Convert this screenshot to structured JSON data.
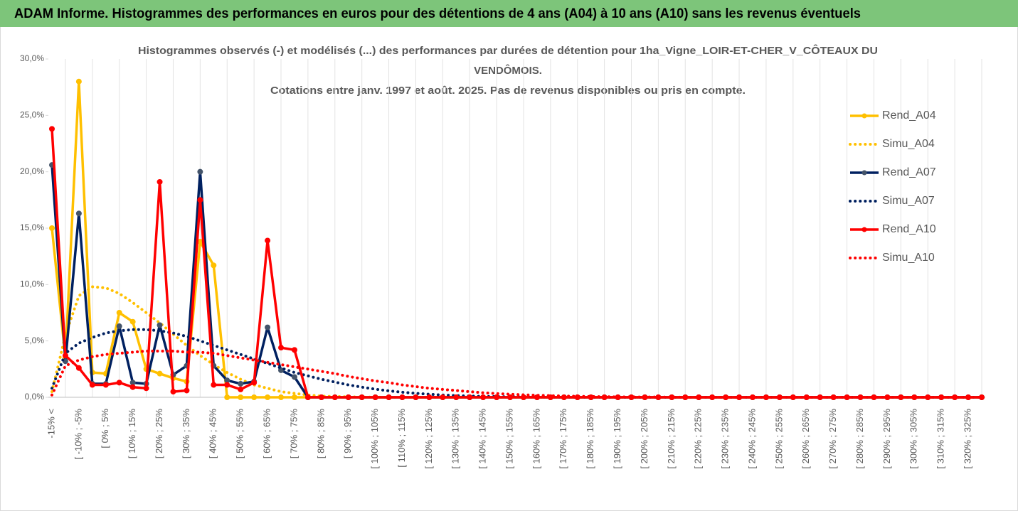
{
  "header": {
    "title": "ADAM Informe. Histogrammes des performances en euros pour des détentions de 4 ans (A04) à 10 ans (A10) sans les revenus éventuels"
  },
  "chart_data": {
    "type": "line",
    "title": [
      "Histogrammes observés (-) et modélisés (...) des performances par durées de détention pour 1ha_Vigne_LOIR-ET-CHER_V_CÔTEAUX DU",
      "VENDÔMOIS.",
      "Cotations entre janv. 1997 et août. 2025. Pas de revenus disponibles ou pris en compte."
    ],
    "categories": [
      "-15% <",
      null,
      "[ -10% ; -5%",
      null,
      "[ 0% ; 5%",
      null,
      "[ 10% ; 15%",
      null,
      "[ 20% ; 25%",
      null,
      "[ 30% ; 35%",
      null,
      "[ 40% ; 45%",
      null,
      "[ 50% ; 55%",
      null,
      "[ 60% ; 65%",
      null,
      "[ 70% ; 75%",
      null,
      "[ 80% ; 85%",
      null,
      "[ 90% ; 95%",
      null,
      "[ 100% ; 105%",
      null,
      "[ 110% ; 115%",
      null,
      "[ 120% ; 125%",
      null,
      "[ 130% ; 135%",
      null,
      "[ 140% ; 145%",
      null,
      "[ 150% ; 155%",
      null,
      "[ 160% ; 165%",
      null,
      "[ 170% ; 175%",
      null,
      "[ 180% ; 185%",
      null,
      "[ 190% ; 195%",
      null,
      "[ 200% ; 205%",
      null,
      "[ 210% ; 215%",
      null,
      "[ 220% ; 225%",
      null,
      "[ 230% ; 235%",
      null,
      "[ 240% ; 245%",
      null,
      "[ 250% ; 255%",
      null,
      "[ 260% ; 265%",
      null,
      "[ 270% ; 275%",
      null,
      "[ 280% ; 285%",
      null,
      "[ 290% ; 295%",
      null,
      "[ 300% ; 305%",
      null,
      "[ 310% ; 315%",
      null,
      "[ 320% ; 325%",
      null
    ],
    "series": [
      {
        "name": "Rend_A04",
        "color": "#FFC000",
        "dotted": false,
        "marker_color": "#FFC000",
        "values": [
          15.0,
          3.5,
          28.0,
          2.2,
          2.1,
          7.5,
          6.7,
          2.5,
          2.1,
          1.7,
          1.4,
          13.8,
          11.7,
          0,
          0,
          0,
          0,
          0,
          0,
          0,
          0,
          0,
          0,
          0,
          0,
          0,
          0,
          0,
          0,
          0,
          0,
          0,
          0,
          0,
          0,
          0,
          0,
          0,
          0,
          0,
          0,
          0,
          0,
          0,
          0,
          0,
          0,
          0,
          0,
          0,
          0,
          0,
          0,
          0,
          0,
          0,
          0,
          0,
          0,
          0,
          0,
          0,
          0,
          0,
          0,
          0,
          0,
          0,
          0,
          0
        ]
      },
      {
        "name": "Simu_A04",
        "color": "#FFC000",
        "dotted": true,
        "values": [
          0.5,
          5.5,
          9.0,
          9.8,
          9.7,
          9.2,
          8.4,
          7.5,
          6.6,
          5.6,
          4.6,
          3.7,
          2.9,
          2.2,
          1.6,
          1.1,
          0.8,
          0.5,
          0.35,
          0.2,
          0.1,
          0.07,
          0.04,
          0.02,
          0.01,
          0,
          0,
          0,
          0,
          0,
          0,
          0,
          0,
          0,
          0,
          0,
          0,
          0,
          0,
          0,
          0,
          0,
          0,
          0,
          0,
          0,
          0,
          0,
          0,
          0,
          0,
          0,
          0,
          0,
          0,
          0,
          0,
          0,
          0,
          0,
          0,
          0,
          0,
          0,
          0,
          0,
          0,
          0,
          0,
          0
        ]
      },
      {
        "name": "Rend_A07",
        "color": "#002060",
        "dotted": false,
        "marker_color": "#44546A",
        "values": [
          20.6,
          3.2,
          16.3,
          1.2,
          1.2,
          6.3,
          1.3,
          1.2,
          6.4,
          2.0,
          2.8,
          20.0,
          2.8,
          1.5,
          1.2,
          1.4,
          6.2,
          2.4,
          1.8,
          0,
          0,
          0,
          0,
          0,
          0,
          0,
          0,
          0,
          0,
          0,
          0,
          0,
          0,
          0,
          0,
          0,
          0,
          0,
          0,
          0,
          0,
          0,
          0,
          0,
          0,
          0,
          0,
          0,
          0,
          0,
          0,
          0,
          0,
          0,
          0,
          0,
          0,
          0,
          0,
          0,
          0,
          0,
          0,
          0,
          0,
          0,
          0,
          0,
          0,
          0
        ]
      },
      {
        "name": "Simu_A07",
        "color": "#002060",
        "dotted": true,
        "values": [
          0.8,
          3.9,
          4.8,
          5.3,
          5.7,
          5.9,
          6.0,
          6.0,
          5.9,
          5.7,
          5.4,
          5.0,
          4.6,
          4.2,
          3.8,
          3.4,
          3.0,
          2.6,
          2.2,
          1.9,
          1.6,
          1.35,
          1.1,
          0.9,
          0.72,
          0.57,
          0.45,
          0.35,
          0.27,
          0.2,
          0.15,
          0.11,
          0.08,
          0.06,
          0.04,
          0.03,
          0.02,
          0.01,
          0.01,
          0,
          0,
          0,
          0,
          0,
          0,
          0,
          0,
          0,
          0,
          0,
          0,
          0,
          0,
          0,
          0,
          0,
          0,
          0,
          0,
          0,
          0,
          0,
          0,
          0,
          0,
          0,
          0,
          0,
          0,
          0
        ]
      },
      {
        "name": "Rend_A10",
        "color": "#FF0000",
        "dotted": false,
        "marker_color": "#FF0000",
        "values": [
          23.8,
          3.7,
          2.6,
          1.1,
          1.1,
          1.3,
          0.9,
          0.8,
          19.1,
          0.5,
          0.6,
          17.5,
          1.1,
          1.1,
          0.7,
          1.3,
          13.9,
          4.4,
          4.2,
          0,
          0,
          0,
          0,
          0,
          0,
          0,
          0,
          0,
          0,
          0,
          0,
          0,
          0,
          0,
          0,
          0,
          0,
          0,
          0,
          0,
          0,
          0,
          0,
          0,
          0,
          0,
          0,
          0,
          0,
          0,
          0,
          0,
          0,
          0,
          0,
          0,
          0,
          0,
          0,
          0,
          0,
          0,
          0,
          0,
          0,
          0,
          0,
          0,
          0,
          0
        ]
      },
      {
        "name": "Simu_A10",
        "color": "#FF0000",
        "dotted": true,
        "values": [
          0.2,
          2.8,
          3.3,
          3.6,
          3.8,
          3.9,
          4.0,
          4.1,
          4.1,
          4.1,
          4.0,
          4.0,
          3.9,
          3.7,
          3.5,
          3.3,
          3.1,
          2.9,
          2.7,
          2.5,
          2.3,
          2.1,
          1.85,
          1.65,
          1.45,
          1.3,
          1.1,
          0.95,
          0.8,
          0.7,
          0.6,
          0.5,
          0.4,
          0.33,
          0.27,
          0.22,
          0.18,
          0.14,
          0.11,
          0.09,
          0.07,
          0.05,
          0.04,
          0.03,
          0.02,
          0.02,
          0.01,
          0,
          0,
          0,
          0,
          0,
          0,
          0,
          0,
          0,
          0,
          0,
          0,
          0,
          0,
          0,
          0,
          0,
          0,
          0,
          0,
          0,
          0,
          0
        ]
      }
    ],
    "ylim": [
      0,
      30
    ],
    "yticks": [
      {
        "value": 0,
        "label": "0,0%"
      },
      {
        "value": 5,
        "label": "5,0%"
      },
      {
        "value": 10,
        "label": "10,0%"
      },
      {
        "value": 15,
        "label": "15,0%"
      },
      {
        "value": 20,
        "label": "20,0%"
      },
      {
        "value": 25,
        "label": "25,0%"
      },
      {
        "value": 30,
        "label": "30,0%"
      }
    ],
    "legend": "right"
  }
}
